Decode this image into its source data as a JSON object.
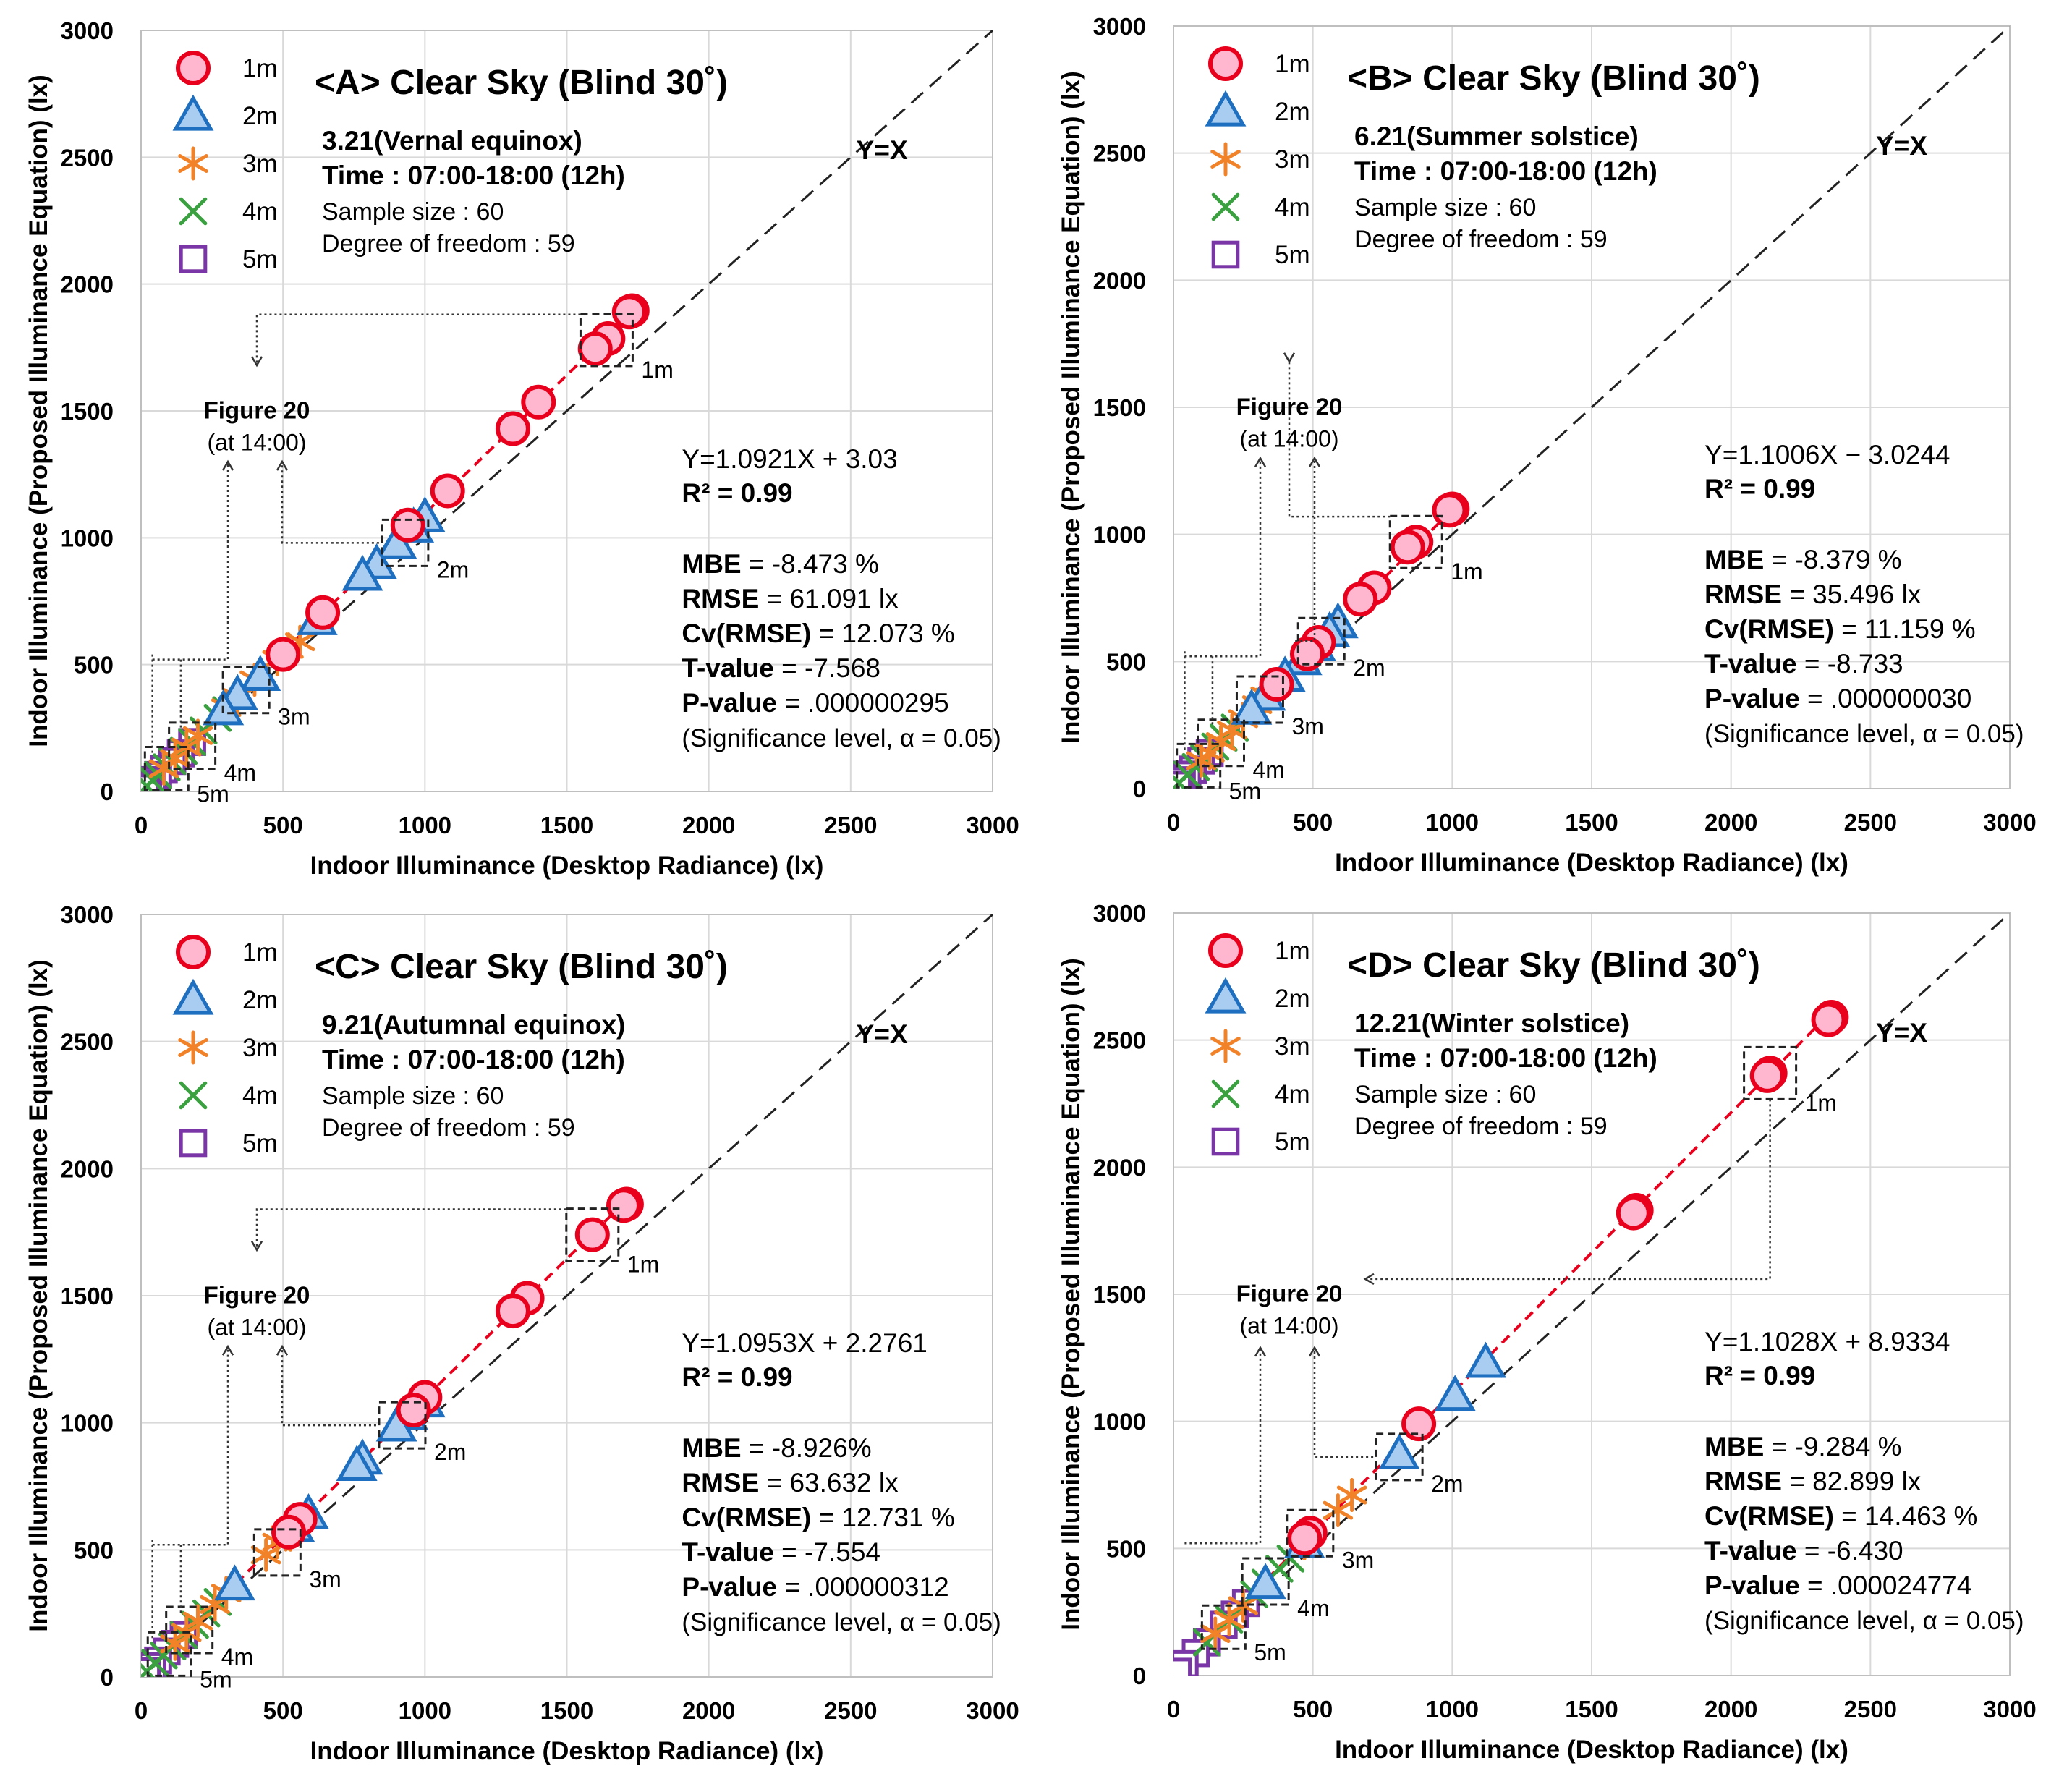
{
  "colors": {
    "1m": "#e8001c",
    "1m_fill": "#ffb6cf",
    "2m": "#1f6fc0",
    "2m_fill": "#a9cdf0",
    "3m": "#f28228",
    "4m": "#3aa040",
    "5m": "#7a35a6",
    "fit_line": "#e8001c",
    "identity_line": "#222222",
    "grid": "#d9d9d9",
    "box": "#222222"
  },
  "chart_data": [
    {
      "type": "scatter",
      "panel": "A",
      "title": "<A> Clear Sky (Blind 30˚)",
      "subtitle_date": "3.21(Vernal equinox)",
      "subtitle_time": "Time : 07:00-18:00 (12h)",
      "sample_size": "Sample size : 60",
      "dof": "Degree of freedom : 59",
      "xlabel": "Indoor Illuminance (Desktop Radiance) (lx)",
      "ylabel": "Indoor Illuminance (Proposed Illuminance Equation) (lx)",
      "xlim": [
        0,
        3000
      ],
      "ylim": [
        0,
        3000
      ],
      "xticks": [
        "0",
        "500",
        "1000",
        "1500",
        "2000",
        "2500",
        "3000"
      ],
      "yticks": [
        "0",
        "500",
        "1000",
        "1500",
        "2000",
        "2500",
        "3000"
      ],
      "grid": true,
      "legend": [
        "1m",
        "2m",
        "3m",
        "4m",
        "5m"
      ],
      "identity_label": "Y=X",
      "equation": "Y=1.0921X + 3.03",
      "r2_label": "R² = ",
      "r2_value": "0.99",
      "fit": {
        "slope": 1.0921,
        "intercept": 3.03
      },
      "stats": [
        {
          "label": "MBE",
          "value": " = -8.473 %"
        },
        {
          "label": "RMSE",
          "value": " = 61.091 lx"
        },
        {
          "label": "Cv(RMSE)",
          "value": " = 12.073 %"
        },
        {
          "label": "T-value",
          "value": " = -7.568"
        },
        {
          "label": "P-value",
          "value": " = .000000295"
        }
      ],
      "significance": "(Significance level, α = 0.05)",
      "figure_ref": "Figure 20",
      "figure_ref_time": "(at 14:00)",
      "figure_ref_pos": "left",
      "series": [
        {
          "name": "1m",
          "x": [
            1730,
            1720,
            1645,
            1600,
            1400,
            1310,
            1080,
            940,
            640,
            500
          ],
          "y": [
            1895,
            1890,
            1785,
            1745,
            1535,
            1430,
            1185,
            1050,
            705,
            540
          ]
        },
        {
          "name": "2m",
          "x": [
            1000,
            960,
            900,
            830,
            780,
            620,
            420,
            340,
            290
          ],
          "y": [
            1080,
            1040,
            975,
            895,
            850,
            675,
            455,
            380,
            320
          ]
        },
        {
          "name": "3m",
          "x": [
            560,
            520,
            480,
            400,
            340,
            300,
            200,
            160,
            120,
            80
          ],
          "y": [
            590,
            560,
            520,
            440,
            370,
            330,
            220,
            175,
            130,
            90
          ]
        },
        {
          "name": "4m",
          "x": [
            300,
            270,
            220,
            180,
            150,
            110,
            90,
            60,
            40,
            20
          ],
          "y": [
            320,
            290,
            240,
            195,
            160,
            120,
            95,
            65,
            45,
            22
          ]
        },
        {
          "name": "5m",
          "x": [
            180,
            140,
            110,
            80,
            60,
            40,
            25,
            15
          ],
          "y": [
            195,
            150,
            120,
            88,
            65,
            45,
            28,
            15
          ]
        }
      ],
      "boxes": [
        {
          "label": "1m",
          "cx": 1640,
          "cy": 1780
        },
        {
          "label": "2m",
          "cx": 930,
          "cy": 980
        },
        {
          "label": "3m",
          "cx": 370,
          "cy": 400
        },
        {
          "label": "4m",
          "cx": 180,
          "cy": 180
        },
        {
          "label": "5m",
          "cx": 90,
          "cy": 90
        }
      ]
    },
    {
      "type": "scatter",
      "panel": "B",
      "title": "<B> Clear Sky (Blind 30˚)",
      "subtitle_date": "6.21(Summer solstice)",
      "subtitle_time": "Time : 07:00-18:00 (12h)",
      "sample_size": "Sample size : 60",
      "dof": "Degree of freedom : 59",
      "xlabel": "Indoor Illuminance (Desktop Radiance) (lx)",
      "ylabel": "Indoor Illuminance (Proposed Illuminance Equation) (lx)",
      "xlim": [
        0,
        3000
      ],
      "ylim": [
        0,
        3000
      ],
      "xticks": [
        "0",
        "500",
        "1000",
        "1500",
        "2000",
        "2500",
        "3000"
      ],
      "yticks": [
        "0",
        "500",
        "1000",
        "1500",
        "2000",
        "2500",
        "3000"
      ],
      "grid": true,
      "legend": [
        "1m",
        "2m",
        "3m",
        "4m",
        "5m"
      ],
      "identity_label": "Y=X",
      "equation": "Y=1.1006X − 3.0244",
      "r2_label": "R² = ",
      "r2_value": "0.99",
      "fit": {
        "slope": 1.1006,
        "intercept": -3.0244
      },
      "stats": [
        {
          "label": "MBE",
          "value": " = -8.379 %"
        },
        {
          "label": "RMSE",
          "value": " = 35.496 lx"
        },
        {
          "label": "Cv(RMSE)",
          "value": " = 11.159 %"
        },
        {
          "label": "T-value",
          "value": " = -8.733"
        },
        {
          "label": "P-value",
          "value": " = .000000030"
        }
      ],
      "significance": "(Significance level, α = 0.05)",
      "figure_ref": "Figure 20",
      "figure_ref_time": "(at 14:00)",
      "figure_ref_pos": "left",
      "series": [
        {
          "name": "1m",
          "x": [
            1000,
            990,
            870,
            840,
            720,
            670,
            520,
            480,
            370
          ],
          "y": [
            1100,
            1095,
            970,
            950,
            790,
            745,
            575,
            530,
            410
          ]
        },
        {
          "name": "2m",
          "x": [
            590,
            560,
            510,
            460,
            400,
            330,
            280
          ],
          "y": [
            650,
            615,
            560,
            505,
            440,
            365,
            310
          ]
        },
        {
          "name": "3m",
          "x": [
            330,
            300,
            250,
            210,
            170,
            130,
            100
          ],
          "y": [
            365,
            330,
            275,
            230,
            185,
            140,
            110
          ]
        },
        {
          "name": "4m",
          "x": [
            220,
            180,
            150,
            110,
            80,
            50,
            20
          ],
          "y": [
            240,
            200,
            165,
            120,
            85,
            55,
            22
          ]
        },
        {
          "name": "5m",
          "x": [
            130,
            100,
            70,
            50,
            30,
            15
          ],
          "y": [
            140,
            110,
            75,
            55,
            33,
            15
          ]
        }
      ],
      "boxes": [
        {
          "label": "1m",
          "cx": 870,
          "cy": 970
        },
        {
          "label": "2m",
          "cx": 530,
          "cy": 580
        },
        {
          "label": "3m",
          "cx": 310,
          "cy": 350
        },
        {
          "label": "4m",
          "cx": 170,
          "cy": 180
        },
        {
          "label": "5m",
          "cx": 90,
          "cy": 90
        }
      ]
    },
    {
      "type": "scatter",
      "panel": "C",
      "title": "<C> Clear Sky (Blind 30˚)",
      "subtitle_date": "9.21(Autumnal equinox)",
      "subtitle_time": "Time : 07:00-18:00 (12h)",
      "sample_size": "Sample size : 60",
      "dof": "Degree of freedom : 59",
      "xlabel": "Indoor Illuminance (Desktop Radiance) (lx)",
      "ylabel": "Indoor Illuminance (Proposed Illuminance Equation) (lx)",
      "xlim": [
        0,
        3000
      ],
      "ylim": [
        0,
        3000
      ],
      "xticks": [
        "0",
        "500",
        "1000",
        "1500",
        "2000",
        "2500",
        "3000"
      ],
      "yticks": [
        "0",
        "500",
        "1000",
        "1500",
        "2000",
        "2500",
        "3000"
      ],
      "grid": true,
      "legend": [
        "1m",
        "2m",
        "3m",
        "4m",
        "5m"
      ],
      "identity_label": "Y=X",
      "equation": "Y=1.0953X + 2.2761",
      "r2_label": "R² = ",
      "r2_value": "0.99",
      "fit": {
        "slope": 1.0953,
        "intercept": 2.2761
      },
      "stats": [
        {
          "label": "MBE",
          "value": " = -8.926%"
        },
        {
          "label": "RMSE",
          "value": " = 63.632 lx"
        },
        {
          "label": "Cv(RMSE)",
          "value": " = 12.731 %"
        },
        {
          "label": "T-value",
          "value": " = -7.554"
        },
        {
          "label": "P-value",
          "value": " = .000000312"
        }
      ],
      "significance": "(Significance level, α = 0.05)",
      "figure_ref": "Figure 20",
      "figure_ref_time": "(at 14:00)",
      "figure_ref_pos": "left",
      "series": [
        {
          "name": "1m",
          "x": [
            1710,
            1700,
            1590,
            1360,
            1310,
            1000,
            960,
            560,
            520
          ],
          "y": [
            1860,
            1855,
            1740,
            1490,
            1440,
            1100,
            1050,
            620,
            570
          ]
        },
        {
          "name": "2m",
          "x": [
            1000,
            940,
            900,
            780,
            760,
            590,
            540,
            330
          ],
          "y": [
            1080,
            1030,
            985,
            855,
            830,
            640,
            590,
            360
          ]
        },
        {
          "name": "3m",
          "x": [
            510,
            480,
            440,
            300,
            260,
            200,
            160,
            120
          ],
          "y": [
            560,
            530,
            480,
            330,
            285,
            220,
            175,
            130
          ]
        },
        {
          "name": "4m",
          "x": [
            270,
            230,
            190,
            150,
            110,
            80,
            50,
            20
          ],
          "y": [
            295,
            250,
            205,
            165,
            120,
            85,
            55,
            22
          ]
        },
        {
          "name": "5m",
          "x": [
            150,
            120,
            90,
            60,
            40,
            20
          ],
          "y": [
            165,
            130,
            100,
            65,
            42,
            22
          ]
        }
      ],
      "boxes": [
        {
          "label": "1m",
          "cx": 1590,
          "cy": 1740
        },
        {
          "label": "2m",
          "cx": 920,
          "cy": 990
        },
        {
          "label": "3m",
          "cx": 480,
          "cy": 490
        },
        {
          "label": "4m",
          "cx": 170,
          "cy": 185
        },
        {
          "label": "5m",
          "cx": 100,
          "cy": 90
        }
      ]
    },
    {
      "type": "scatter",
      "panel": "D",
      "title": "<D> Clear Sky (Blind 30˚)",
      "subtitle_date": "12.21(Winter solstice)",
      "subtitle_time": "Time : 07:00-18:00 (12h)",
      "sample_size": "Sample size : 60",
      "dof": "Degree of freedom : 59",
      "xlabel": "Indoor Illuminance (Desktop Radiance) (lx)",
      "ylabel": "Indoor Illuminance (Proposed Illuminance Equation) (lx)",
      "xlim": [
        0,
        3000
      ],
      "ylim": [
        0,
        3000
      ],
      "xticks": [
        "0",
        "500",
        "1000",
        "1500",
        "2000",
        "2500",
        "3000"
      ],
      "yticks": [
        "0",
        "500",
        "1000",
        "1500",
        "2000",
        "2500",
        "3000"
      ],
      "grid": true,
      "legend": [
        "1m",
        "2m",
        "3m",
        "4m",
        "5m"
      ],
      "identity_label": "Y=X",
      "equation": "Y=1.1028X + 8.9334",
      "r2_label": "R² = ",
      "r2_value": "0.99",
      "fit": {
        "slope": 1.1028,
        "intercept": 8.9334
      },
      "stats": [
        {
          "label": "MBE",
          "value": " = -9.284 %"
        },
        {
          "label": "RMSE",
          "value": " = 82.899 lx"
        },
        {
          "label": "Cv(RMSE)",
          "value": " = 14.463 %"
        },
        {
          "label": "T-value",
          "value": " = -6.430"
        },
        {
          "label": "P-value",
          "value": " = .000024774"
        }
      ],
      "significance": "(Significance level, α = 0.05)",
      "figure_ref": "Figure 20",
      "figure_ref_time": "(at 14:00)",
      "figure_ref_pos": "right",
      "series": [
        {
          "name": "1m",
          "x": [
            2360,
            2350,
            2140,
            2130,
            1660,
            1650,
            880,
            490,
            470
          ],
          "y": [
            2590,
            2580,
            2370,
            2360,
            1830,
            1820,
            990,
            560,
            540
          ]
        },
        {
          "name": "2m",
          "x": [
            1120,
            1010,
            810,
            470,
            330
          ],
          "y": [
            1230,
            1100,
            870,
            520,
            360
          ]
        },
        {
          "name": "3m",
          "x": [
            640,
            590,
            470,
            250,
            200,
            150
          ],
          "y": [
            710,
            650,
            520,
            275,
            220,
            165
          ]
        },
        {
          "name": "4m",
          "x": [
            420,
            380,
            330,
            290,
            200,
            120
          ],
          "y": [
            460,
            420,
            365,
            320,
            220,
            130
          ]
        },
        {
          "name": "5m",
          "x": [
            260,
            220,
            180,
            120,
            80,
            40,
            15
          ],
          "y": [
            285,
            240,
            200,
            130,
            88,
            45,
            15
          ]
        }
      ],
      "boxes": [
        {
          "label": "1m",
          "cx": 2140,
          "cy": 2370
        },
        {
          "label": "2m",
          "cx": 810,
          "cy": 860
        },
        {
          "label": "3m",
          "cx": 490,
          "cy": 560
        },
        {
          "label": "4m",
          "cx": 330,
          "cy": 370
        },
        {
          "label": "5m",
          "cx": 180,
          "cy": 190
        }
      ]
    }
  ]
}
